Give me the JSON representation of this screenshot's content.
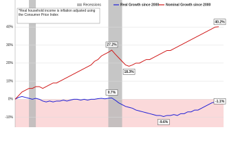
{
  "chart_data": {
    "type": "line",
    "legend": [
      "Recessions"
    ],
    "note": "*Real household income is inflation adjusted using the Consumer Price Index",
    "recessions": [
      {
        "start": 4,
        "end": 6
      },
      {
        "start": 27,
        "end": 31
      }
    ],
    "recession_color": "#b8b8b8",
    "negative_fill": "#fbd9da",
    "grid": true,
    "ylim": [
      -15.5,
      55
    ],
    "yticks": [
      {
        "value": -10,
        "label": "-10%"
      },
      {
        "value": 0,
        "label": "0%"
      },
      {
        "value": 10,
        "label": "10%"
      },
      {
        "value": 20,
        "label": "20%"
      },
      {
        "value": 30,
        "label": "30%"
      },
      {
        "value": 40,
        "label": "40%"
      }
    ],
    "categories": [
      null,
      null,
      null,
      null,
      null,
      null,
      null,
      null,
      null,
      null,
      null,
      null,
      null,
      null,
      null,
      null,
      null,
      null,
      null,
      null,
      null,
      null,
      null,
      null,
      null,
      null,
      null,
      null,
      null,
      null,
      null,
      null,
      null,
      null,
      null,
      null,
      null,
      null,
      null,
      null,
      null,
      null,
      null,
      null,
      null,
      null,
      null,
      null,
      null,
      null,
      null,
      null,
      null,
      null,
      null,
      null,
      null,
      null,
      null,
      null
    ],
    "series": [
      {
        "name": "Real Growth since 2000",
        "color": "#1f1fd6",
        "values": [
          0,
          1,
          1.5,
          1,
          0.5,
          0,
          0.5,
          0,
          -1,
          -1.5,
          -1,
          -1.5,
          -1,
          -1,
          -0.5,
          -1,
          -0.5,
          0,
          0,
          -0.5,
          0,
          -0.5,
          0,
          0,
          0.3,
          0.5,
          0.2,
          0.5,
          0.7,
          -0.5,
          -2,
          -3,
          -4,
          -4.5,
          -5,
          -6,
          -6.5,
          -7,
          -7.5,
          -8,
          -8.5,
          -9,
          -9,
          -9.6,
          -9,
          -9,
          -8.5,
          -9,
          -8,
          -8,
          -7,
          -7,
          -6,
          -6,
          -5,
          -4,
          -3,
          -2,
          -1.5,
          -1.1
        ],
        "value_labels": [
          null,
          null,
          null,
          null,
          null,
          null,
          null,
          null,
          null,
          null,
          null,
          null,
          null,
          null,
          null,
          null,
          null,
          null,
          null,
          null,
          null,
          null,
          null,
          null,
          null,
          null,
          null,
          null,
          "0.7%",
          null,
          null,
          null,
          null,
          null,
          null,
          null,
          null,
          null,
          null,
          null,
          null,
          null,
          null,
          "-9.6%",
          null,
          null,
          null,
          null,
          null,
          null,
          null,
          null,
          null,
          null,
          null,
          null,
          null,
          null,
          null,
          "-1.1%"
        ]
      },
      {
        "name": "Nominal Growth since 2000",
        "color": "#d01818",
        "values": [
          0,
          2,
          4,
          5,
          6,
          6,
          7,
          7,
          6,
          7,
          8,
          9,
          9,
          10,
          11,
          12,
          13,
          14,
          15,
          16,
          17,
          18,
          19,
          21,
          22,
          24,
          25,
          26,
          27.2,
          25,
          23,
          21,
          19,
          18.3,
          19,
          20,
          20,
          21,
          22,
          22,
          23,
          24,
          25,
          26,
          27,
          27,
          28,
          29,
          30,
          31,
          32,
          33,
          34,
          35,
          36,
          37,
          38,
          39,
          40,
          40.2
        ],
        "value_labels": [
          null,
          null,
          null,
          null,
          null,
          null,
          null,
          null,
          null,
          null,
          null,
          null,
          null,
          null,
          null,
          null,
          null,
          null,
          null,
          null,
          null,
          null,
          null,
          null,
          null,
          null,
          null,
          null,
          "27.2%",
          null,
          null,
          null,
          null,
          "18.3%",
          null,
          null,
          null,
          null,
          null,
          null,
          null,
          null,
          null,
          null,
          null,
          null,
          null,
          null,
          null,
          null,
          null,
          null,
          null,
          null,
          null,
          null,
          null,
          null,
          null,
          "40.2%"
        ]
      }
    ]
  }
}
